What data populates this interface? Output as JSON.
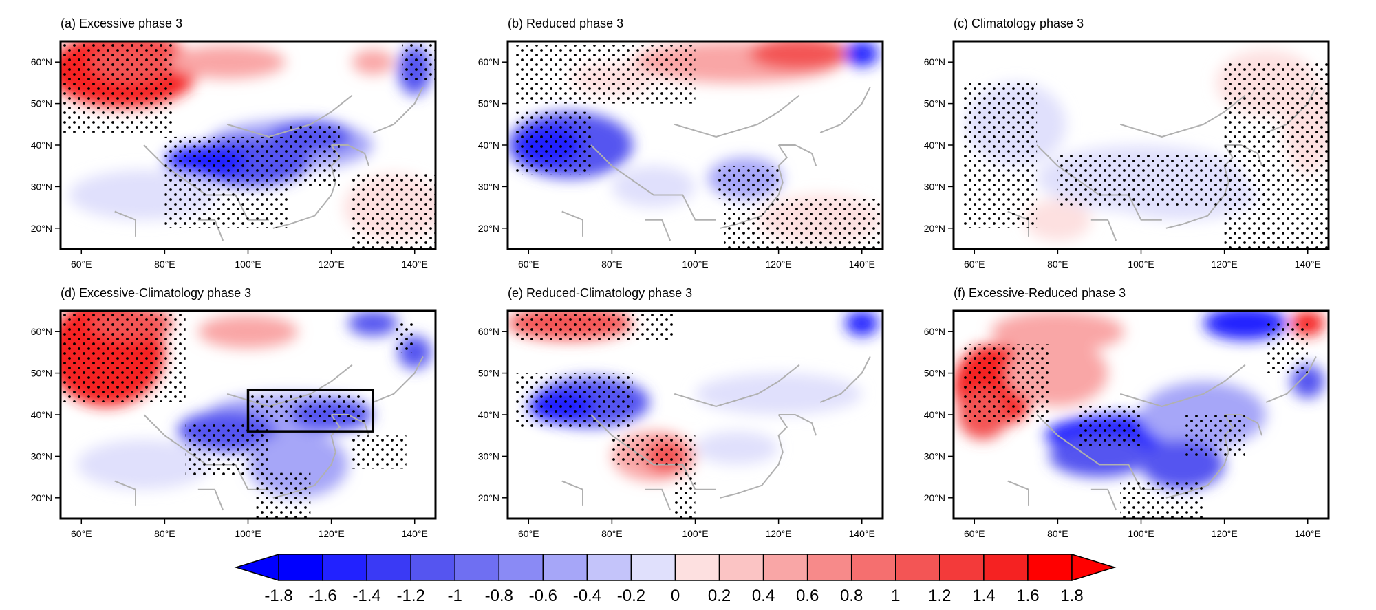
{
  "panels": [
    {
      "id": "a",
      "title": "(a) Excessive phase 3",
      "box": false
    },
    {
      "id": "b",
      "title": "(b) Reduced phase 3",
      "box": false
    },
    {
      "id": "c",
      "title": "(c) Climatology  phase 3",
      "box": false
    },
    {
      "id": "d",
      "title": "(d) Excessive-Climatology phase 3",
      "box": true
    },
    {
      "id": "e",
      "title": "(e) Reduced-Climatology phase 3",
      "box": false
    },
    {
      "id": "f",
      "title": "(f) Excessive-Reduced phase 3",
      "box": false
    }
  ],
  "map_extent": {
    "lon": [
      55,
      145
    ],
    "lat": [
      15,
      65
    ]
  },
  "lat_ticks": [
    {
      "value": 60,
      "label": "60°N"
    },
    {
      "value": 50,
      "label": "50°N"
    },
    {
      "value": 40,
      "label": "40°N"
    },
    {
      "value": 30,
      "label": "30°N"
    },
    {
      "value": 20,
      "label": "20°N"
    }
  ],
  "lon_ticks": [
    {
      "value": 60,
      "label": "60°E"
    },
    {
      "value": 80,
      "label": "80°E"
    },
    {
      "value": 100,
      "label": "100°E"
    },
    {
      "value": 120,
      "label": "120°E"
    },
    {
      "value": 140,
      "label": "140°E"
    }
  ],
  "highlight_box": {
    "lon": [
      100,
      130
    ],
    "lat": [
      36,
      46
    ]
  },
  "colorbar": {
    "labels": [
      "-1.8",
      "-1.6",
      "-1.4",
      "-1.2",
      "-1",
      "-0.8",
      "-0.6",
      "-0.4",
      "-0.2",
      "0",
      "0.2",
      "0.4",
      "0.6",
      "0.8",
      "1",
      "1.2",
      "1.4",
      "1.6",
      "1.8"
    ],
    "colors": [
      "#0000ff",
      "#2222ff",
      "#3a3af5",
      "#5555f0",
      "#6f6ff2",
      "#8a8af5",
      "#a6a6f8",
      "#c4c4fa",
      "#e0e0fc",
      "#ffffff",
      "#fde0e0",
      "#fbc4c4",
      "#f9a6a6",
      "#f78a8a",
      "#f56f6f",
      "#f35555",
      "#f33a3a",
      "#f52222",
      "#ff0000"
    ],
    "min_color": "#0000ff",
    "max_color": "#ff0000"
  }
}
